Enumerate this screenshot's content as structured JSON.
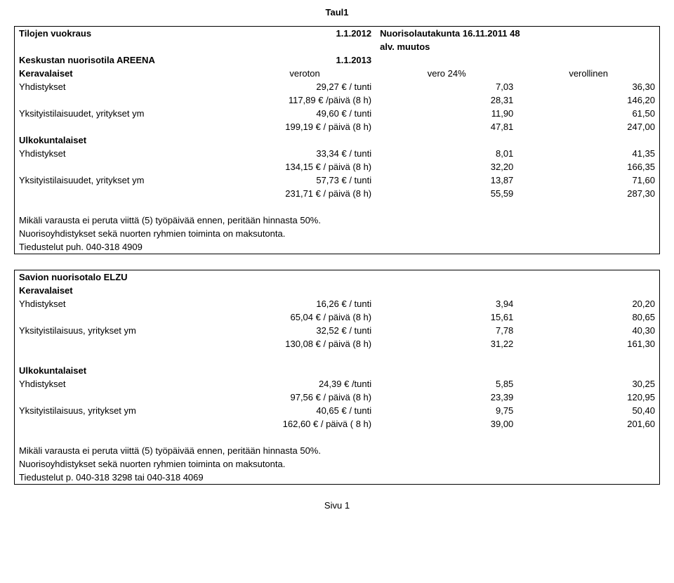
{
  "sheet_title": "Taul1",
  "header": {
    "title_left": "Tilojen vuokraus",
    "title_date": "1.1.2012",
    "title_right": "Nuorisolautakunta 16.11.2011 48",
    "alv_label": "alv. muutos",
    "areena_label": "Keskustan nuorisotila AREENA",
    "areena_date": "1.1.2013",
    "ker_label": "Keravalaiset",
    "veroton": "veroton",
    "vero24": "vero 24%",
    "verollinen": "verollinen"
  },
  "section1": {
    "rows": [
      {
        "a": "Yhdistykset",
        "b": "29,27 € / tunti",
        "c": "7,03",
        "d": "36,30"
      },
      {
        "a": "",
        "b": "117,89 € /päivä (8 h)",
        "c": "28,31",
        "d": "146,20"
      },
      {
        "a": "Yksityistilaisuudet, yritykset ym",
        "b": "49,60 € / tunti",
        "c": "11,90",
        "d": "61,50"
      },
      {
        "a": "",
        "b": "199,19 € / päivä (8 h)",
        "c": "47,81",
        "d": "247,00"
      }
    ],
    "ulko_label": "Ulkokuntalaiset",
    "rows2": [
      {
        "a": "Yhdistykset",
        "b": "33,34 € / tunti",
        "c": "8,01",
        "d": "41,35"
      },
      {
        "a": "",
        "b": "134,15 € / päivä (8 h)",
        "c": "32,20",
        "d": "166,35"
      },
      {
        "a": "Yksityistilaisuudet, yritykset ym",
        "b": "57,73 € / tunti",
        "c": "13,87",
        "d": "71,60"
      },
      {
        "a": "",
        "b": "231,71 € / päivä (8 h)",
        "c": "55,59",
        "d": "287,30"
      }
    ],
    "note1": "Mikäli varausta ei peruta viittä (5) työpäivää ennen, peritään hinnasta 50%.",
    "note2": "Nuorisoyhdistykset sekä nuorten ryhmien toiminta on maksutonta.",
    "note3": "Tiedustelut puh. 040-318 4909"
  },
  "section2": {
    "title": "Savion nuorisotalo ELZU",
    "ker_label": "Keravalaiset",
    "rows": [
      {
        "a": "Yhdistykset",
        "b": "16,26 € / tunti",
        "c": "3,94",
        "d": "20,20"
      },
      {
        "a": "",
        "b": "65,04 € / päivä (8 h)",
        "c": "15,61",
        "d": "80,65"
      },
      {
        "a": "Yksityistilaisuus, yritykset ym",
        "b": "32,52 € / tunti",
        "c": "7,78",
        "d": "40,30"
      },
      {
        "a": "",
        "b": "130,08 € / päivä (8 h)",
        "c": "31,22",
        "d": "161,30"
      }
    ],
    "ulko_label": "Ulkokuntalaiset",
    "rows2": [
      {
        "a": "Yhdistykset",
        "b": "24,39 €  /tunti",
        "c": "5,85",
        "d": "30,25"
      },
      {
        "a": "",
        "b": "97,56 € / päivä (8 h)",
        "c": "23,39",
        "d": "120,95"
      },
      {
        "a": "Yksityistilaisuus, yritykset ym",
        "b": "40,65 € / tunti",
        "c": "9,75",
        "d": "50,40"
      },
      {
        "a": "",
        "b": "162,60 € / päivä ( 8 h)",
        "c": "39,00",
        "d": "201,60"
      }
    ],
    "note1": "Mikäli varausta ei peruta viittä (5) työpäivää ennen, peritään hinnasta 50%.",
    "note2": "Nuorisoyhdistykset sekä nuorten ryhmien toiminta on maksutonta.",
    "note3": "Tiedustelut p. 040-318 3298 tai 040-318 4069"
  },
  "footer": "Sivu 1"
}
